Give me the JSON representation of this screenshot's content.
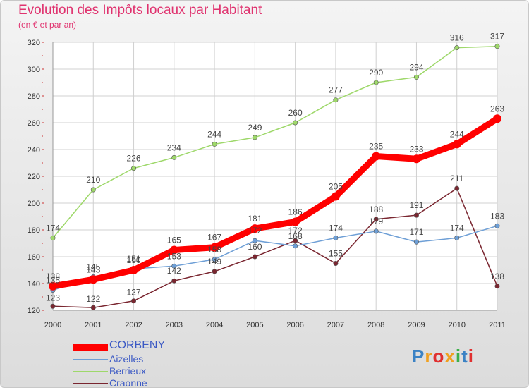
{
  "title": "Evolution des Impôts locaux par Habitant",
  "subtitle": "(en € et par an)",
  "brand": {
    "text": "Proxiti",
    "colors": [
      "#3b82c4",
      "#f0a020",
      "#e03030",
      "#f0a020",
      "#3bb04a",
      "#3b82c4",
      "#e03030"
    ]
  },
  "chart_data": {
    "type": "line",
    "x": [
      "2000",
      "2001",
      "2002",
      "2003",
      "2004",
      "2005",
      "2006",
      "2007",
      "2008",
      "2009",
      "2010",
      "2011"
    ],
    "ylim": [
      120,
      320
    ],
    "yticks": [
      "120",
      "140",
      "160",
      "180",
      "200",
      "220",
      "240",
      "260",
      "280",
      "300",
      "320"
    ],
    "grid": true,
    "legend_position": "bottom-left",
    "series": [
      {
        "name": "CORBENY",
        "color": "#ff0000",
        "values": [
          138,
          143,
          150,
          165,
          167,
          181,
          186,
          205,
          235,
          233,
          244,
          263
        ]
      },
      {
        "name": "Aizelles",
        "color": "#6e9fd6",
        "values": [
          135,
          145,
          151,
          153,
          158,
          172,
          168,
          174,
          179,
          171,
          174,
          183
        ]
      },
      {
        "name": "Berrieux",
        "color": "#9ed86a",
        "values": [
          174,
          210,
          226,
          234,
          244,
          249,
          260,
          277,
          290,
          294,
          316,
          317
        ]
      },
      {
        "name": "Craonne",
        "color": "#7a2630",
        "values": [
          123,
          122,
          127,
          142,
          149,
          160,
          172,
          155,
          188,
          191,
          211,
          138
        ]
      }
    ]
  }
}
